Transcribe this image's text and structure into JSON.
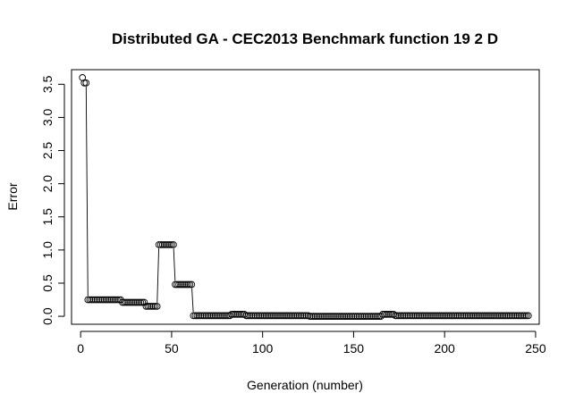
{
  "chart_data": {
    "type": "line",
    "title": "Distributed GA - CEC2013 Benchmark function  19 2 D",
    "xlabel": "Generation (number)",
    "ylabel": "Error",
    "xlim": [
      -5,
      252
    ],
    "ylim": [
      -0.12,
      3.72
    ],
    "x_ticks": [
      0,
      50,
      100,
      150,
      200,
      250
    ],
    "y_ticks": [
      0.0,
      0.5,
      1.0,
      1.5,
      2.0,
      2.5,
      3.0,
      3.5
    ],
    "x_tick_labels": [
      "0",
      "50",
      "100",
      "150",
      "200",
      "250"
    ],
    "y_tick_labels": [
      "0.0",
      "0.5",
      "1.0",
      "1.5",
      "2.0",
      "2.5",
      "3.0",
      "3.5"
    ],
    "grid": false,
    "marker": "open-circle",
    "segments": [
      {
        "from": 1,
        "to": 3,
        "value": 3.52
      },
      {
        "from": 4,
        "to": 22,
        "value": 0.25
      },
      {
        "from": 23,
        "to": 35,
        "value": 0.21
      },
      {
        "from": 36,
        "to": 42,
        "value": 0.15
      },
      {
        "from": 42,
        "to": 51,
        "value": 1.08
      },
      {
        "from": 51,
        "to": 61,
        "value": 0.48
      },
      {
        "from": 61,
        "to": 82,
        "value": 0.01
      },
      {
        "from": 82,
        "to": 90,
        "value": 0.03
      },
      {
        "from": 90,
        "to": 125,
        "value": 0.01
      },
      {
        "from": 125,
        "to": 165,
        "value": 0.0
      },
      {
        "from": 165,
        "to": 172,
        "value": 0.03
      },
      {
        "from": 172,
        "to": 246,
        "value": 0.01
      }
    ],
    "points": [
      {
        "x": 1,
        "y": 3.6
      },
      {
        "x": 2,
        "y": 3.52
      },
      {
        "x": 3,
        "y": 3.52
      }
    ]
  }
}
